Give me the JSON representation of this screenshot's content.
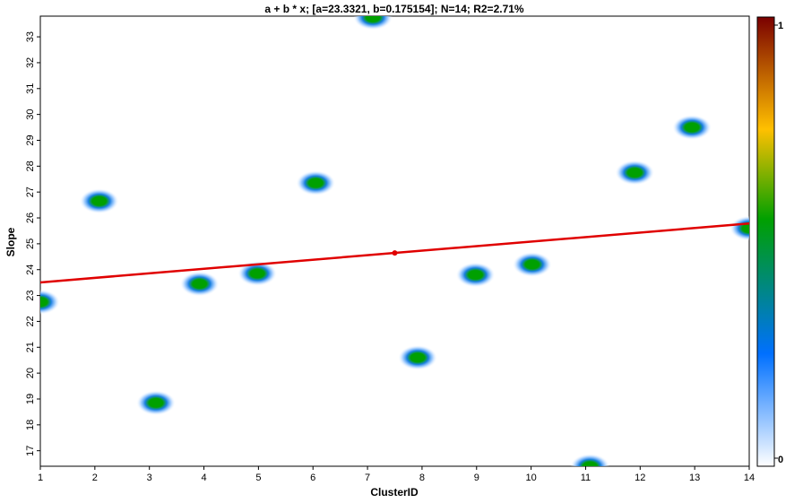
{
  "chart_data": {
    "type": "scatter",
    "title": "a + b * x; [a=23.3321, b=0.175154]; N=14; R2=2.71%",
    "xlabel": "ClusterID",
    "ylabel": "Slope",
    "xlim": [
      1,
      14
    ],
    "ylim": [
      16.4,
      33.8
    ],
    "x_ticks": [
      1,
      2,
      3,
      4,
      5,
      6,
      7,
      8,
      9,
      10,
      11,
      12,
      13,
      14
    ],
    "y_ticks": [
      17,
      18,
      19,
      20,
      21,
      22,
      23,
      24,
      25,
      26,
      27,
      28,
      29,
      30,
      31,
      32,
      33
    ],
    "grid": false,
    "points": [
      {
        "x": 1,
        "y": 22.75
      },
      {
        "x": 2.08,
        "y": 26.65
      },
      {
        "x": 3.12,
        "y": 18.85
      },
      {
        "x": 3.92,
        "y": 23.45
      },
      {
        "x": 4.98,
        "y": 23.85
      },
      {
        "x": 6.05,
        "y": 27.35
      },
      {
        "x": 7.1,
        "y": 33.75
      },
      {
        "x": 7.92,
        "y": 20.6
      },
      {
        "x": 8.98,
        "y": 23.8
      },
      {
        "x": 10.02,
        "y": 24.2
      },
      {
        "x": 11.08,
        "y": 16.4
      },
      {
        "x": 11.9,
        "y": 27.75
      },
      {
        "x": 12.95,
        "y": 29.5
      },
      {
        "x": 14,
        "y": 25.6
      }
    ],
    "fit_line": {
      "a": 23.3321,
      "b": 0.175154,
      "color": "#e00000"
    },
    "fit_marker": {
      "x": 7.5,
      "y": 24.646
    },
    "colorbar": {
      "min_label": "0",
      "max_label": "1",
      "stops": [
        "#ffffff",
        "#0070ff",
        "#00a000",
        "#ffc000",
        "#7a0000"
      ]
    }
  }
}
